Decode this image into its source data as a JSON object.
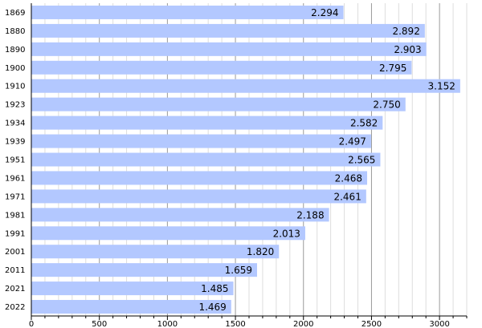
{
  "chart_data": {
    "type": "bar",
    "orientation": "horizontal",
    "title": "",
    "xlabel": "",
    "ylabel": "",
    "categories": [
      "1869",
      "1880",
      "1890",
      "1900",
      "1910",
      "1923",
      "1934",
      "1939",
      "1951",
      "1961",
      "1971",
      "1981",
      "1991",
      "2001",
      "2011",
      "2021",
      "2022"
    ],
    "values": [
      2294,
      2892,
      2903,
      2795,
      3152,
      2750,
      2582,
      2497,
      2565,
      2468,
      2461,
      2188,
      2013,
      1820,
      1659,
      1485,
      1469
    ],
    "value_labels": [
      "2.294",
      "2.892",
      "2.903",
      "2.795",
      "3.152",
      "2.750",
      "2.582",
      "2.497",
      "2.565",
      "2.468",
      "2.461",
      "2.188",
      "2.013",
      "1.820",
      "1.659",
      "1.485",
      "1.469"
    ],
    "x_ticks": [
      0,
      500,
      1000,
      1500,
      2000,
      2500,
      3000
    ],
    "x_tick_labels": [
      "0",
      "500",
      "1000",
      "1500",
      "2000",
      "2500",
      "3000"
    ],
    "xlim": [
      0,
      3200
    ],
    "grid": true,
    "minor_grid_step": 100,
    "bar_color": "#b3c8ff",
    "major_grid_color": "#9a9a9a",
    "minor_grid_color": "#dddddd"
  }
}
